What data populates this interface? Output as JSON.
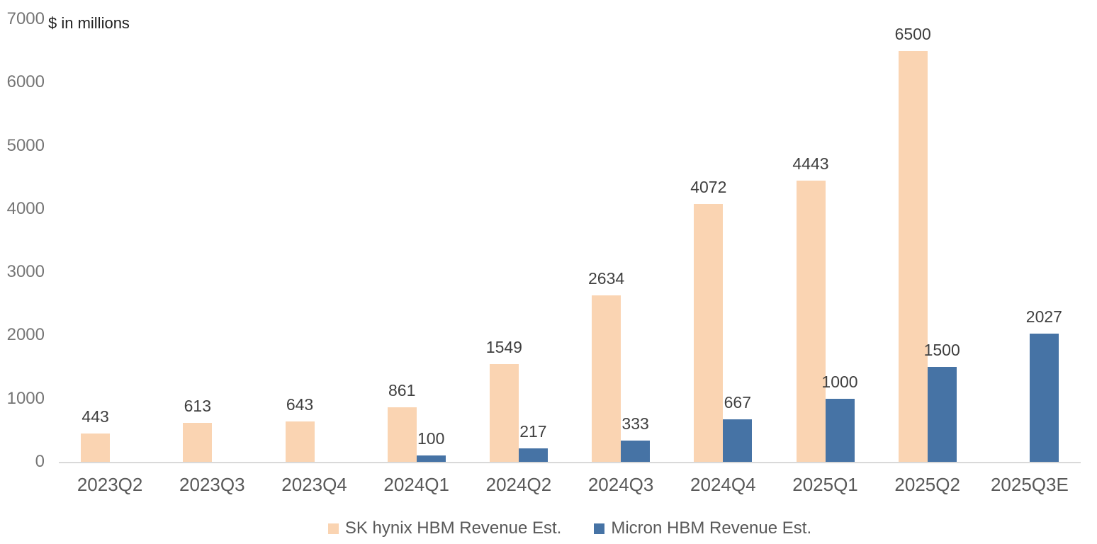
{
  "chart_data": {
    "type": "bar",
    "title": "",
    "units_label": "$ in millions",
    "categories": [
      "2023Q2",
      "2023Q3",
      "2023Q4",
      "2024Q1",
      "2024Q2",
      "2024Q3",
      "2024Q4",
      "2025Q1",
      "2025Q2",
      "2025Q3E"
    ],
    "series": [
      {
        "name": "SK hynix HBM Revenue Est.",
        "color": "#FAD4B2",
        "values": [
          443,
          613,
          643,
          861,
          1549,
          2634,
          4072,
          4443,
          6500,
          null
        ]
      },
      {
        "name": "Micron HBM Revenue Est.",
        "color": "#4673A5",
        "values": [
          null,
          null,
          null,
          100,
          217,
          333,
          667,
          1000,
          1500,
          2027
        ]
      }
    ],
    "ylim": [
      0,
      7000
    ],
    "y_tick_interval": 1000,
    "y_tick_labels": [
      "0",
      "1000",
      "2000",
      "3000",
      "4000",
      "5000",
      "6000",
      "7000"
    ],
    "grid": false,
    "legend_position": "bottom",
    "data_labels": true
  },
  "colors": {
    "background": "#FFFFFF",
    "axis_line": "#D9D9D9",
    "y_tick_text": "#757575",
    "x_tick_text": "#595959",
    "data_label_text": "#3F3F3F",
    "legend_text": "#595959",
    "units_label_text": "#1F1F1F"
  }
}
